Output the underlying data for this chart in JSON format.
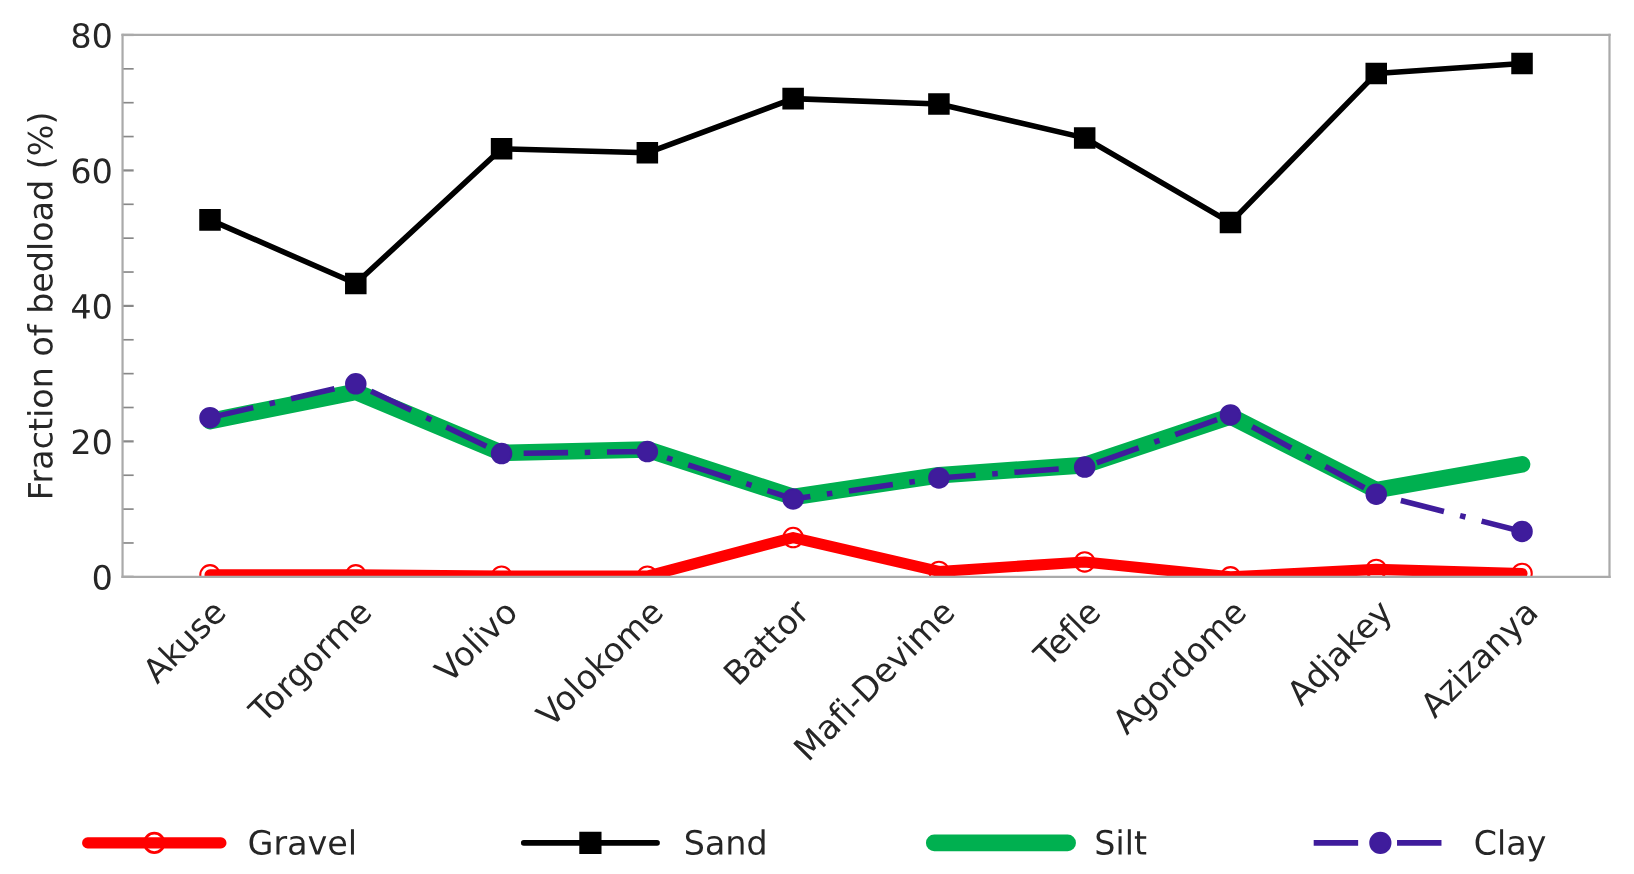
{
  "chart_data": {
    "type": "line",
    "ylabel": "Fraction of bedload (%)",
    "categories": [
      "Akuse",
      "Torgorme",
      "Volivo",
      "Volokome",
      "Battor",
      "Mafi-Devime",
      "Tefle",
      "Agordome",
      "Adjakey",
      "Azizanya"
    ],
    "series": [
      {
        "name": "Gravel",
        "color": "#ff0000",
        "marker": "circle",
        "line_style": "solid",
        "values": [
          0.3,
          0.3,
          0.1,
          0.1,
          5.8,
          0.8,
          2.2,
          0,
          1.1,
          0.5
        ]
      },
      {
        "name": "Sand",
        "color": "#000000",
        "marker": "square",
        "line_style": "solid",
        "values": [
          52.7,
          43.3,
          63.2,
          62.6,
          70.6,
          69.8,
          64.8,
          52.3,
          74.3,
          75.8
        ]
      },
      {
        "name": "Silt",
        "color": "#00b050",
        "marker": "none",
        "line_style": "solid",
        "values": [
          23,
          27.3,
          18.3,
          18.8,
          11.8,
          15,
          16.5,
          23.7,
          12.8,
          16.6
        ]
      },
      {
        "name": "Clay",
        "color": "#3f1c9c",
        "marker": "circle",
        "line_style": "dashed",
        "values": [
          23.5,
          28.5,
          18.2,
          18.5,
          11.5,
          14.6,
          16.2,
          23.9,
          12.2,
          6.7
        ]
      }
    ],
    "ylim": [
      0,
      80
    ],
    "yticks": [
      0,
      20,
      40,
      60,
      80
    ],
    "grid": false,
    "legend": "bottom"
  }
}
